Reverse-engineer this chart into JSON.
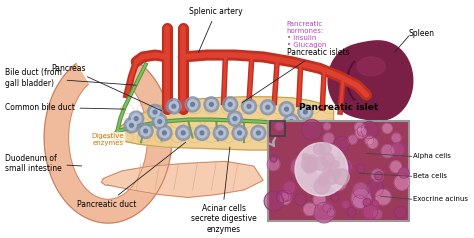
{
  "bg_color": "#ffffff",
  "pancreas_color": "#f0d090",
  "pancreas_outline": "#c8a050",
  "spleen_color": "#7a1f45",
  "spleen_highlight": "#9b3060",
  "duodenum_color": "#f0b898",
  "duodenum_outline": "#c88060",
  "intestine_color": "#f5c8a8",
  "artery_color": "#c03020",
  "artery_inner": "#e04030",
  "duct_color": "#5a9040",
  "islet_dot_outer": "#8090b8",
  "islet_dot_inner": "#b0c0d8",
  "micro_bg": "#9b3a5a",
  "micro_border": "#888888",
  "arrow_color": "#aaaaaa",
  "label_color": "#111111",
  "hormone_color": "#bb44bb",
  "enzyme_color": "#cc7700",
  "labels": {
    "splenic_artery": "Splenic artery",
    "pancreas": "Pancreas",
    "pancreatic_hormones": "Pancreatic\nhormones:\n• Insulin\n• Glucagon",
    "pancreatic_islets": "Pancreatic islets",
    "spleen": "Spleen",
    "bile_duct": "Bile duct (from\ngall bladder)",
    "common_bile_duct": "Common bile duct",
    "digestive_enzymes": "Digestive\nenzymes",
    "duodenum": "Duodenum of\nsmall intestine",
    "pancreatic_duct": "Pancreatic duct",
    "acinar_cells": "Acinar cells\nsecrete digestive\nenzymes",
    "pancreatic_islet_title": "Pancreatic islet",
    "alpha_cells": "Alpha cells",
    "beta_cells": "Beta cells",
    "exocrine_acinus": "Exocrine acinus"
  },
  "fontsize": 5.5,
  "fontsize_micro": 5.0
}
